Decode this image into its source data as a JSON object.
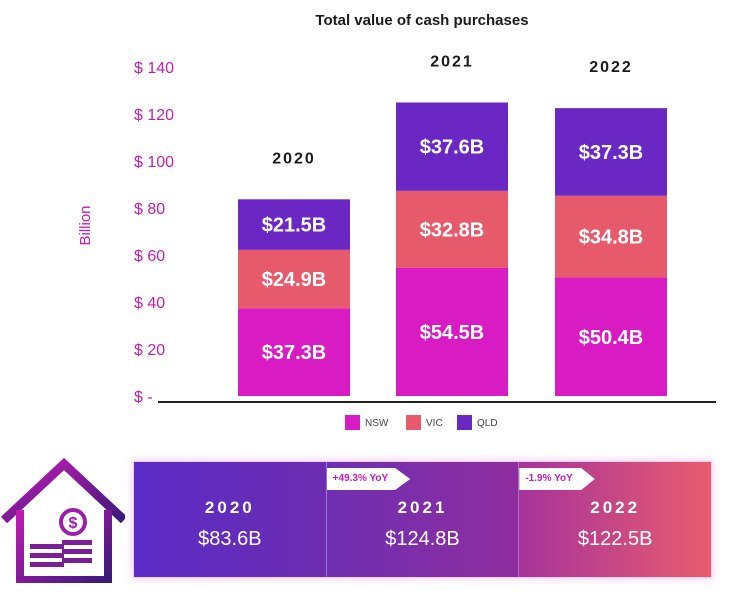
{
  "chart_data": {
    "type": "bar",
    "stacked": true,
    "title": "Total value of cash purchases",
    "ylabel": "Billion",
    "ylim": [
      0,
      140
    ],
    "yticks": [
      {
        "value": 0,
        "label": "$ -"
      },
      {
        "value": 20,
        "label": "$ 20"
      },
      {
        "value": 40,
        "label": "$ 40"
      },
      {
        "value": 60,
        "label": "$ 60"
      },
      {
        "value": 80,
        "label": "$ 80"
      },
      {
        "value": 100,
        "label": "$ 100"
      },
      {
        "value": 120,
        "label": "$ 120"
      },
      {
        "value": 140,
        "label": "$ 140"
      }
    ],
    "categories": [
      "2020",
      "2021",
      "2022"
    ],
    "series": [
      {
        "name": "NSW",
        "color": "#d91bc3",
        "values": [
          37.3,
          54.5,
          50.4
        ],
        "labels": [
          "$37.3B",
          "$54.5B",
          "$50.4B"
        ]
      },
      {
        "name": "VIC",
        "color": "#e75a6c",
        "values": [
          24.9,
          32.8,
          34.8
        ],
        "labels": [
          "$24.9B",
          "$32.8B",
          "$34.8B"
        ]
      },
      {
        "name": "QLD",
        "color": "#6a27c4",
        "values": [
          21.5,
          37.6,
          37.3
        ],
        "labels": [
          "$21.5B",
          "$37.6B",
          "$37.3B"
        ]
      }
    ],
    "legend_position": "bottom-center",
    "grid": false
  },
  "summary": {
    "items": [
      {
        "year": "2020",
        "value": "$83.6B",
        "yoy": ""
      },
      {
        "year": "2021",
        "value": "$124.8B",
        "yoy": "+49.3% YoY"
      },
      {
        "year": "2022",
        "value": "$122.5B",
        "yoy": "-1.9% YoY"
      }
    ]
  },
  "icons": {
    "house": "house-dollar-icon"
  },
  "colors": {
    "accent": "#c21cb5",
    "nsw": "#d91bc3",
    "vic": "#e75a6c",
    "qld": "#6a27c4"
  }
}
